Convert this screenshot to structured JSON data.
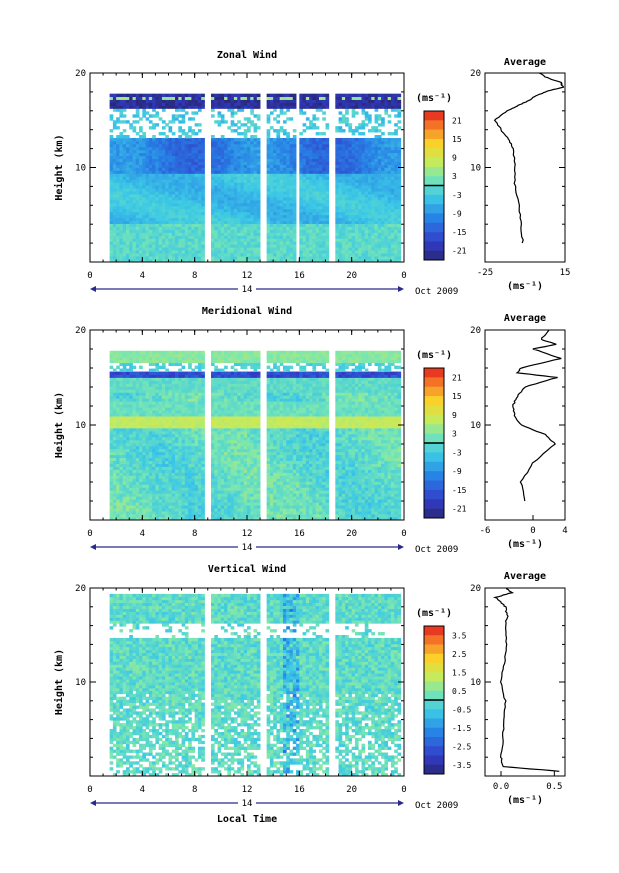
{
  "chart_data": [
    {
      "type": "heatmap",
      "title": "Zonal Wind",
      "ylabel": "Height (km)",
      "xlim": [
        0,
        24
      ],
      "ylim": [
        0,
        20
      ],
      "xticks": [
        "0",
        "4",
        "8",
        "12",
        "16",
        "20",
        "0"
      ],
      "yticks": [
        "20",
        "10"
      ],
      "day_label": "14",
      "date_label": "Oct 2009",
      "colorbar": {
        "unit": "(ms⁻¹)",
        "ticks": [
          "21",
          "15",
          "9",
          "3",
          "-3",
          "-9",
          "-15",
          "-21"
        ],
        "range": [
          -24,
          24
        ]
      },
      "data_gaps_hours": [
        [
          0,
          1.5
        ],
        [
          8.8,
          9.3
        ],
        [
          13.0,
          13.5
        ],
        [
          15.8,
          16.1
        ],
        [
          18.2,
          18.8
        ]
      ],
      "average": {
        "title": "Average",
        "xlabel": "(ms⁻¹)",
        "xticks": [
          "-25",
          "15"
        ],
        "xlim": [
          -25,
          15
        ],
        "height_km": [
          2,
          4,
          6,
          8,
          10,
          12,
          13,
          14,
          15,
          16,
          16.5,
          17,
          17.5,
          18,
          18.5,
          19,
          19.5,
          20
        ],
        "values": [
          -6,
          -7,
          -8,
          -10,
          -10,
          -11,
          -13,
          -17,
          -20,
          -14,
          -9,
          -4,
          0,
          5,
          14,
          13,
          6,
          2
        ]
      }
    },
    {
      "type": "heatmap",
      "title": "Meridional Wind",
      "ylabel": "Height (km)",
      "xlim": [
        0,
        24
      ],
      "ylim": [
        0,
        20
      ],
      "xticks": [
        "0",
        "4",
        "8",
        "12",
        "16",
        "20",
        "0"
      ],
      "yticks": [
        "20",
        "10"
      ],
      "day_label": "14",
      "date_label": "Oct 2009",
      "colorbar": {
        "unit": "(ms⁻¹)",
        "ticks": [
          "21",
          "15",
          "9",
          "3",
          "-3",
          "-9",
          "-15",
          "-21"
        ],
        "range": [
          -24,
          24
        ]
      },
      "data_gaps_hours": [
        [
          0,
          1.5
        ],
        [
          8.8,
          9.3
        ],
        [
          13.0,
          13.5
        ],
        [
          18.2,
          18.8
        ]
      ],
      "average": {
        "title": "Average",
        "xlabel": "(ms⁻¹)",
        "xticks": [
          "-6",
          "0",
          "4"
        ],
        "xlim": [
          -6,
          4
        ],
        "height_km": [
          2,
          4,
          6,
          8,
          9,
          10,
          11,
          12,
          13,
          14,
          15,
          15.5,
          16,
          17,
          18,
          18.5,
          19,
          20
        ],
        "values": [
          -1,
          -1.5,
          0,
          2.8,
          1.5,
          -1.5,
          -2.3,
          -2.5,
          -2,
          -1,
          3,
          -2,
          -1.5,
          3.5,
          0,
          3,
          1,
          2
        ]
      }
    },
    {
      "type": "heatmap",
      "title": "Vertical Wind",
      "ylabel": "Height (km)",
      "xlabel": "Local Time",
      "xlim": [
        0,
        24
      ],
      "ylim": [
        0,
        20
      ],
      "xticks": [
        "0",
        "4",
        "8",
        "12",
        "16",
        "20",
        "0"
      ],
      "yticks": [
        "20",
        "10"
      ],
      "day_label": "14",
      "date_label": "Oct 2009",
      "colorbar": {
        "unit": "(ms⁻¹)",
        "ticks": [
          "3.5",
          "2.5",
          "1.5",
          "0.5",
          "-0.5",
          "-1.5",
          "-2.5",
          "-3.5"
        ],
        "range": [
          -4,
          4
        ]
      },
      "data_gaps_hours": [
        [
          0,
          1.5
        ],
        [
          8.8,
          9.3
        ],
        [
          13.0,
          13.5
        ],
        [
          18.2,
          18.8
        ]
      ],
      "average": {
        "title": "Average",
        "xlabel": "(ms⁻¹)",
        "xticks": [
          "0.0",
          "0.5"
        ],
        "xlim": [
          -0.15,
          0.6
        ],
        "height_km": [
          0.5,
          1,
          2,
          4,
          6,
          8,
          10,
          12,
          14,
          16,
          17,
          18,
          18.5,
          19,
          19.5,
          20
        ],
        "values": [
          0.55,
          0.02,
          0.0,
          0.02,
          0.03,
          0.04,
          0.0,
          0.03,
          0.05,
          0.04,
          0.06,
          0.04,
          0.0,
          -0.05,
          0.1,
          0.05
        ]
      }
    }
  ]
}
